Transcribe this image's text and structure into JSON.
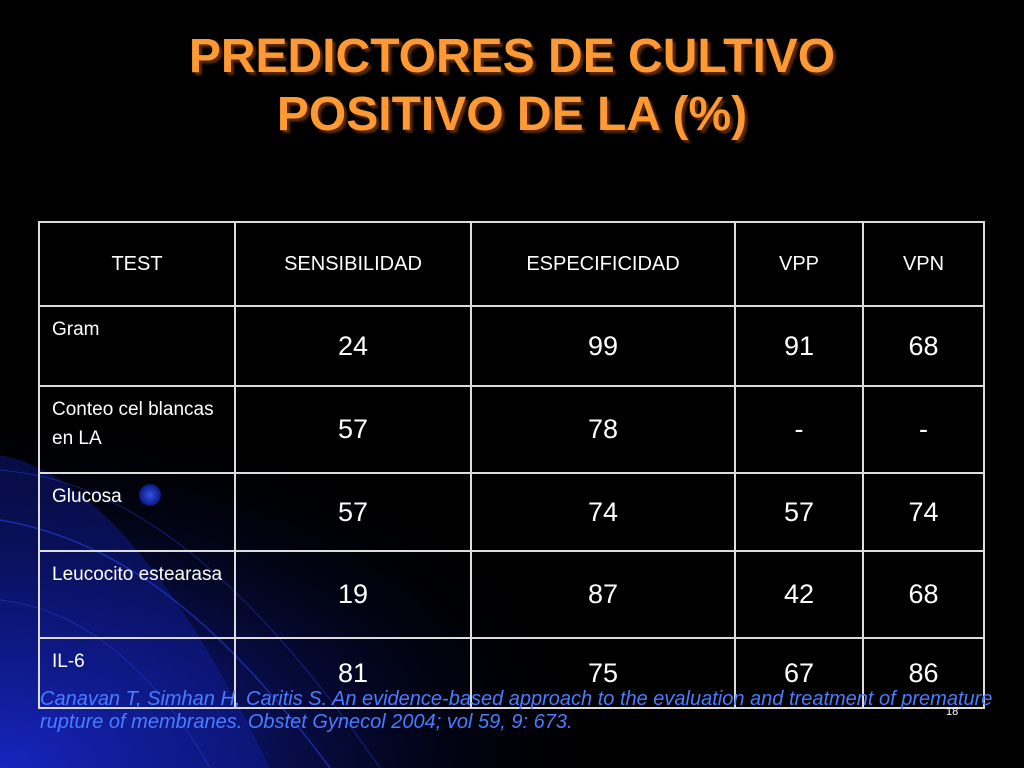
{
  "slide": {
    "title_line1": "PREDICTORES DE CULTIVO",
    "title_line2": "POSITIVO DE LA (%)",
    "slide_number": "18",
    "citation": "Canavan T, Simhan H, Caritis S. An evidence-based approach to the evaluation and treatment of premature rupture of membranes. Obstet Gynecol 2004; vol 59, 9: 673.",
    "colors": {
      "background": "#000000",
      "title": "#ff9933",
      "citation": "#4a7cff",
      "table_border": "#dddddd",
      "table_text": "#ffffff"
    }
  },
  "table": {
    "headers": [
      "TEST",
      "SENSIBILIDAD",
      "ESPECIFICIDAD",
      "VPP",
      "VPN"
    ],
    "rows": [
      {
        "test": "Gram",
        "sensibilidad": "24",
        "especificidad": "99",
        "vpp": "91",
        "vpn": "68"
      },
      {
        "test": "Conteo cel blancas en LA",
        "sensibilidad": "57",
        "especificidad": "78",
        "vpp": "-",
        "vpn": "-"
      },
      {
        "test": "Glucosa",
        "sensibilidad": "57",
        "especificidad": "74",
        "vpp": "57",
        "vpn": "74"
      },
      {
        "test": "Leucocito estearasa",
        "sensibilidad": "19",
        "especificidad": "87",
        "vpp": "42",
        "vpn": "68"
      },
      {
        "test": "IL-6",
        "sensibilidad": "81",
        "especificidad": "75",
        "vpp": "67",
        "vpn": "86"
      }
    ]
  }
}
